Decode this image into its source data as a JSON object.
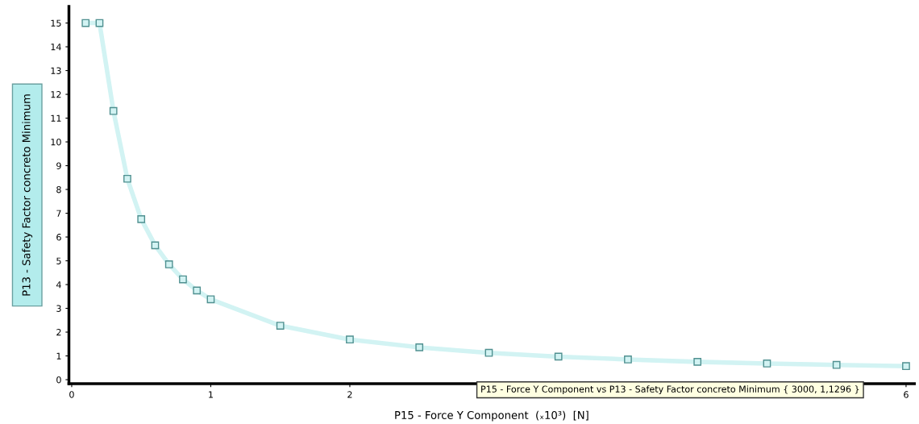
{
  "chart_data": {
    "type": "line",
    "xlabel": "P15 - Force Y Component  (ₓ10³)  [N]",
    "ylabel": "P13 - Safety Factor concreto Minimum",
    "x": [
      0.1,
      0.2,
      0.3,
      0.4,
      0.5,
      0.6,
      0.7,
      0.8,
      0.9,
      1.0,
      1.5,
      2.0,
      2.5,
      3.0,
      3.5,
      4.0,
      4.5,
      5.0,
      5.5,
      6.0
    ],
    "series": [
      {
        "color": "#d2f3f3",
        "values": [
          15,
          15,
          11.3,
          8.45,
          6.75,
          5.65,
          4.85,
          4.22,
          3.75,
          3.38,
          2.27,
          1.69,
          1.36,
          1.1296,
          0.97,
          0.85,
          0.75,
          0.68,
          0.62,
          0.57
        ]
      }
    ],
    "marker": "square",
    "xlim": [
      -0.02,
      6.06
    ],
    "ylim": [
      -0.17,
      15.7
    ],
    "xticks": [
      0,
      1,
      2,
      6
    ],
    "yticks": [
      0,
      1,
      2,
      3,
      4,
      5,
      6,
      7,
      8,
      9,
      10,
      11,
      12,
      13,
      14,
      15
    ],
    "grid": false,
    "legend": false,
    "annotations": [
      "P15 - Force Y Component vs P13 - Safety Factor concreto Minimum { 3000, 1,1296 }"
    ]
  }
}
